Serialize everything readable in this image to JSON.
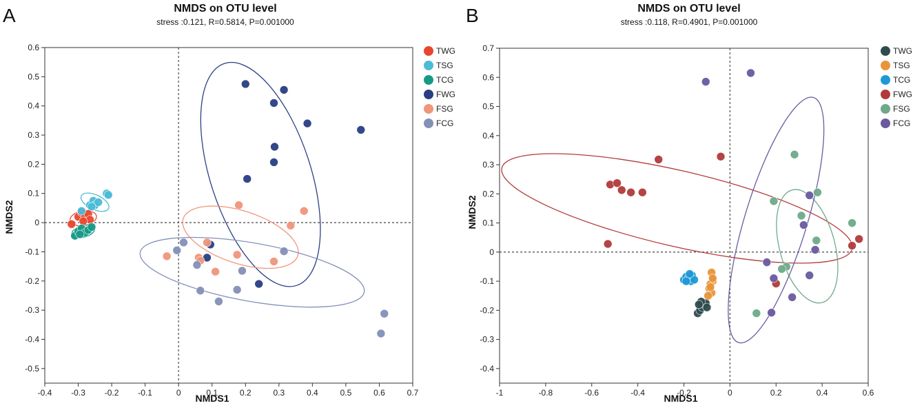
{
  "chart_data": [
    {
      "type": "scatter",
      "panel": "A",
      "title": "NMDS on OTU level",
      "subtitle": "stress :0.121, R=0.5814, P=0.001000",
      "xlabel": "NMDS1",
      "ylabel": "NMDS2",
      "xlim": [
        -0.4,
        0.7
      ],
      "ylim": [
        -0.55,
        0.6
      ],
      "xticks": [
        -0.4,
        -0.3,
        -0.2,
        -0.1,
        0,
        0.1,
        0.2,
        0.3,
        0.4,
        0.5,
        0.6,
        0.7
      ],
      "xtick_labels": [
        "-0.4",
        "-0.3",
        "-0.2",
        "-0.1",
        "0",
        "0.1",
        "0.2",
        "0.3",
        "0.4",
        "0.5",
        "0.6",
        "0.7"
      ],
      "yticks": [
        -0.5,
        -0.4,
        -0.3,
        -0.2,
        -0.1,
        0,
        0.1,
        0.2,
        0.3,
        0.4,
        0.5,
        0.6
      ],
      "ytick_labels": [
        "-0.5",
        "-0.4",
        "-0.3",
        "-0.2",
        "-0.1",
        "0",
        "0.1",
        "0.2",
        "0.3",
        "0.4",
        "0.5",
        "0.6"
      ],
      "series": [
        {
          "name": "TWG",
          "color": "#e8472e",
          "points": [
            [
              -0.32,
              -0.005
            ],
            [
              -0.3,
              0.02
            ],
            [
              -0.29,
              0.035
            ],
            [
              -0.28,
              0.02
            ],
            [
              -0.27,
              0.03
            ],
            [
              -0.265,
              0.01
            ],
            [
              -0.285,
              0.005
            ]
          ],
          "ellipse": {
            "cx": -0.285,
            "cy": 0.015,
            "rx": 0.04,
            "ry": 0.025,
            "angle": 10
          }
        },
        {
          "name": "TSG",
          "color": "#4bbbd6",
          "points": [
            [
              -0.29,
              0.04
            ],
            [
              -0.265,
              0.06
            ],
            [
              -0.255,
              0.075
            ],
            [
              -0.25,
              0.06
            ],
            [
              -0.24,
              0.07
            ],
            [
              -0.215,
              0.1
            ],
            [
              -0.21,
              0.095
            ],
            [
              -0.26,
              0.055
            ]
          ],
          "ellipse": {
            "cx": -0.25,
            "cy": 0.07,
            "rx": 0.045,
            "ry": 0.025,
            "angle": -25
          }
        },
        {
          "name": "TCG",
          "color": "#159a86",
          "points": [
            [
              -0.31,
              -0.045
            ],
            [
              -0.3,
              -0.03
            ],
            [
              -0.29,
              -0.02
            ],
            [
              -0.28,
              -0.035
            ],
            [
              -0.27,
              -0.025
            ],
            [
              -0.26,
              -0.015
            ],
            [
              -0.295,
              -0.04
            ]
          ],
          "ellipse": {
            "cx": -0.285,
            "cy": -0.03,
            "rx": 0.035,
            "ry": 0.02,
            "angle": 15
          }
        },
        {
          "name": "FWG",
          "color": "#293f83",
          "points": [
            [
              0.2,
              0.475
            ],
            [
              0.315,
              0.455
            ],
            [
              0.285,
              0.41
            ],
            [
              0.385,
              0.34
            ],
            [
              0.545,
              0.318
            ],
            [
              0.287,
              0.26
            ],
            [
              0.285,
              0.207
            ],
            [
              0.205,
              0.15
            ],
            [
              0.095,
              -0.075
            ],
            [
              0.085,
              -0.12
            ],
            [
              0.24,
              -0.21
            ]
          ],
          "ellipse": {
            "cx": 0.245,
            "cy": 0.165,
            "rx": 0.15,
            "ry": 0.4,
            "angle": 18
          }
        },
        {
          "name": "FSG",
          "color": "#f1957b",
          "points": [
            [
              0.18,
              0.06
            ],
            [
              0.375,
              0.04
            ],
            [
              0.335,
              -0.01
            ],
            [
              0.085,
              -0.068
            ],
            [
              -0.035,
              -0.115
            ],
            [
              0.06,
              -0.12
            ],
            [
              0.065,
              -0.13
            ],
            [
              0.175,
              -0.11
            ],
            [
              0.285,
              -0.133
            ],
            [
              0.11,
              -0.168
            ]
          ],
          "ellipse": {
            "cx": 0.185,
            "cy": -0.05,
            "rx": 0.18,
            "ry": 0.09,
            "angle": -18
          }
        },
        {
          "name": "FCG",
          "color": "#8390b7",
          "points": [
            [
              -0.005,
              -0.095
            ],
            [
              0.015,
              -0.068
            ],
            [
              0.055,
              -0.145
            ],
            [
              0.19,
              -0.165
            ],
            [
              0.315,
              -0.098
            ],
            [
              0.065,
              -0.233
            ],
            [
              0.175,
              -0.23
            ],
            [
              0.12,
              -0.27
            ],
            [
              0.615,
              -0.312
            ],
            [
              0.605,
              -0.38
            ]
          ],
          "ellipse": {
            "cx": 0.22,
            "cy": -0.17,
            "rx": 0.34,
            "ry": 0.1,
            "angle": -10
          }
        }
      ]
    },
    {
      "type": "scatter",
      "panel": "B",
      "title": "NMDS on OTU level",
      "subtitle": "stress :0.118, R=0.4901, P=0.001000",
      "xlabel": "NMDS1",
      "ylabel": "NMDS2",
      "xlim": [
        -1,
        0.6
      ],
      "ylim": [
        -0.45,
        0.7
      ],
      "xticks": [
        -1,
        -0.8,
        -0.6,
        -0.4,
        -0.2,
        0,
        0.2,
        0.4,
        0.6
      ],
      "xtick_labels": [
        "-1",
        "-0.8",
        "-0.6",
        "-0.4",
        "-0.2",
        "0",
        "0.2",
        "0.4",
        "0.6"
      ],
      "yticks": [
        -0.4,
        -0.3,
        -0.2,
        -0.1,
        0,
        0.1,
        0.2,
        0.3,
        0.4,
        0.5,
        0.6,
        0.7
      ],
      "ytick_labels": [
        "-0.4",
        "-0.3",
        "-0.2",
        "-0.1",
        "0",
        "0.1",
        "0.2",
        "0.3",
        "0.4",
        "0.5",
        "0.6",
        "0.7"
      ],
      "series": [
        {
          "name": "TWG",
          "color": "#2f4b50",
          "points": [
            [
              -0.14,
              -0.21
            ],
            [
              -0.13,
              -0.2
            ],
            [
              -0.12,
              -0.19
            ],
            [
              -0.11,
              -0.18
            ],
            [
              -0.105,
              -0.175
            ],
            [
              -0.125,
              -0.17
            ],
            [
              -0.135,
              -0.18
            ],
            [
              -0.1,
              -0.19
            ]
          ],
          "ellipse": null
        },
        {
          "name": "TSG",
          "color": "#e8953a",
          "points": [
            [
              -0.08,
              -0.07
            ],
            [
              -0.075,
              -0.1
            ],
            [
              -0.085,
              -0.11
            ],
            [
              -0.09,
              -0.125
            ],
            [
              -0.08,
              -0.14
            ],
            [
              -0.095,
              -0.15
            ],
            [
              -0.075,
              -0.09
            ],
            [
              -0.085,
              -0.12
            ]
          ],
          "ellipse": null
        },
        {
          "name": "TCG",
          "color": "#1d9ad6",
          "points": [
            [
              -0.2,
              -0.095
            ],
            [
              -0.19,
              -0.085
            ],
            [
              -0.18,
              -0.09
            ],
            [
              -0.17,
              -0.1
            ],
            [
              -0.165,
              -0.08
            ],
            [
              -0.155,
              -0.095
            ],
            [
              -0.175,
              -0.075
            ],
            [
              -0.19,
              -0.1
            ]
          ],
          "ellipse": null
        },
        {
          "name": "FWG",
          "color": "#b23a3a",
          "points": [
            [
              -0.52,
              0.232
            ],
            [
              -0.49,
              0.237
            ],
            [
              -0.47,
              0.213
            ],
            [
              -0.43,
              0.205
            ],
            [
              -0.38,
              0.205
            ],
            [
              -0.31,
              0.318
            ],
            [
              -0.04,
              0.328
            ],
            [
              -0.53,
              0.028
            ],
            [
              0.2,
              -0.108
            ],
            [
              0.53,
              0.022
            ],
            [
              0.56,
              0.045
            ]
          ],
          "ellipse": {
            "cx": -0.23,
            "cy": 0.15,
            "rx": 0.78,
            "ry": 0.13,
            "angle": -13
          }
        },
        {
          "name": "FSG",
          "color": "#6eaa8a",
          "points": [
            [
              0.28,
              0.335
            ],
            [
              0.38,
              0.205
            ],
            [
              0.19,
              0.175
            ],
            [
              0.31,
              0.125
            ],
            [
              0.53,
              0.1
            ],
            [
              0.375,
              0.04
            ],
            [
              0.245,
              -0.05
            ],
            [
              0.225,
              -0.058
            ],
            [
              0.115,
              -0.21
            ]
          ],
          "ellipse": {
            "cx": 0.335,
            "cy": 0.02,
            "rx": 0.12,
            "ry": 0.2,
            "angle": 15
          }
        },
        {
          "name": "FCG",
          "color": "#6a5a9f",
          "points": [
            [
              0.09,
              0.615
            ],
            [
              -0.105,
              0.585
            ],
            [
              0.345,
              0.195
            ],
            [
              0.32,
              0.093
            ],
            [
              0.37,
              0.008
            ],
            [
              0.16,
              -0.035
            ],
            [
              0.19,
              -0.09
            ],
            [
              0.345,
              -0.08
            ],
            [
              0.27,
              -0.155
            ],
            [
              0.18,
              -0.208
            ]
          ],
          "ellipse": {
            "cx": 0.2,
            "cy": 0.11,
            "rx": 0.135,
            "ry": 0.44,
            "angle": -17
          }
        }
      ]
    }
  ]
}
